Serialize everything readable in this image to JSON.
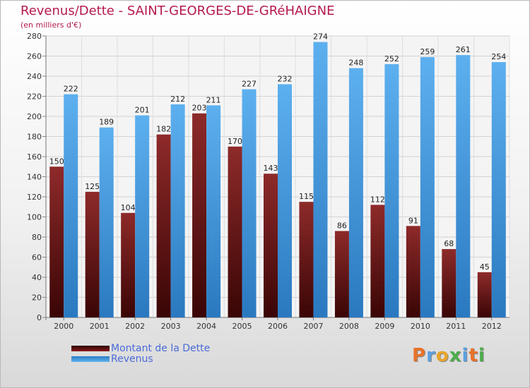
{
  "header": {
    "title": "Revenus/Dette - SAINT-GEORGES-DE-GRéHAIGNE",
    "subtitle": "(en milliers d'€)"
  },
  "legend": {
    "items": [
      {
        "label": "Montant de la Dette",
        "color": "#8b1a1a"
      },
      {
        "label": "Revenus",
        "color": "#4a9fe0"
      }
    ]
  },
  "logo": {
    "letters": [
      "P",
      "r",
      "o",
      "x",
      "i",
      "t",
      "i"
    ],
    "colors": [
      "#e8722a",
      "#5aa0e0",
      "#e8a42a",
      "#4cae4c",
      "#5aa0e0",
      "#e8722a",
      "#4cae4c"
    ]
  },
  "chart_data": {
    "type": "bar",
    "categories": [
      "2000",
      "2001",
      "2002",
      "2003",
      "2004",
      "2005",
      "2006",
      "2007",
      "2008",
      "2009",
      "2010",
      "2011",
      "2012"
    ],
    "series": [
      {
        "name": "Montant de la Dette",
        "color": "#8b1a1a",
        "values": [
          150,
          125,
          104,
          182,
          203,
          170,
          143,
          115,
          86,
          112,
          91,
          68,
          45
        ]
      },
      {
        "name": "Revenus",
        "color": "#4a9fe0",
        "values": [
          222,
          189,
          201,
          212,
          211,
          227,
          232,
          274,
          248,
          252,
          259,
          261,
          254
        ]
      }
    ],
    "ylim": [
      0,
      280
    ],
    "yticks": [
      0,
      20,
      40,
      60,
      80,
      100,
      120,
      140,
      160,
      180,
      200,
      220,
      240,
      260,
      280
    ],
    "grid": true,
    "legend_position": "bottom-left"
  }
}
